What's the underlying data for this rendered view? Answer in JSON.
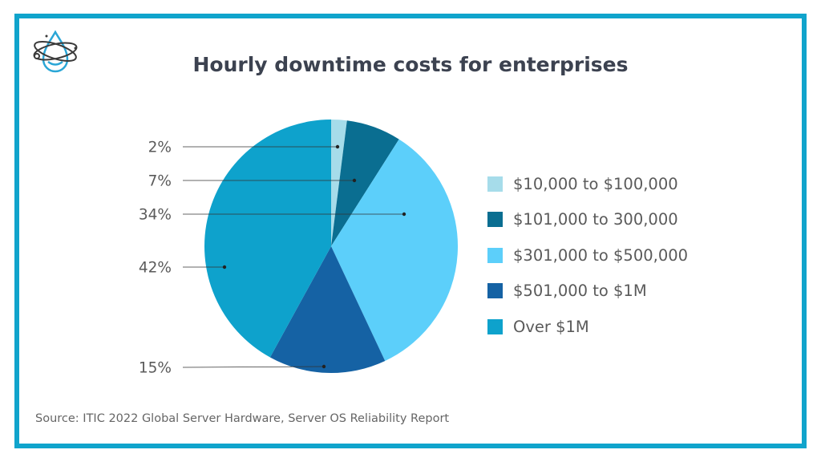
{
  "chart_data": {
    "type": "pie",
    "title": "Hourly downtime costs for enterprises",
    "source": "Source: ITIC 2022 Global Server Hardware, Server OS Reliability Report",
    "legend_position": "right",
    "slices": [
      {
        "label": "$10,000 to $100,000",
        "value": 2,
        "value_label": "2%",
        "color": "#a6dcea"
      },
      {
        "label": "$101,000 to 300,000",
        "value": 7,
        "value_label": "7%",
        "color": "#0a6e91"
      },
      {
        "label": "$301,000 to $500,000",
        "value": 34,
        "value_label": "34%",
        "color": "#5ccffa"
      },
      {
        "label": "$501,000 to $1M",
        "value": 15,
        "value_label": "15%",
        "color": "#1562a4"
      },
      {
        "label": "Over $1M",
        "value": 42,
        "value_label": "42%",
        "color": "#0ea2cc"
      }
    ]
  },
  "colors": {
    "border": "#10a4cc",
    "logo": "#2aa6d6"
  }
}
